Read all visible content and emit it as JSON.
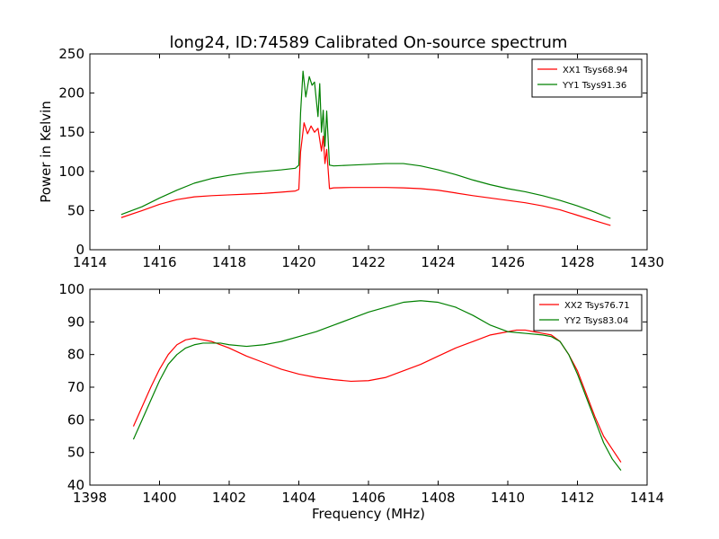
{
  "figure": {
    "title": "long24, ID:74589 Calibrated On-source spectrum",
    "xlabel": "Frequency (MHz)",
    "ylabel": "Power in Kelvin"
  },
  "chart_data": [
    {
      "type": "line",
      "title": "long24, ID:74589 Calibrated On-source spectrum",
      "xlabel": "",
      "ylabel": "Power in Kelvin",
      "xlim": [
        1414,
        1430
      ],
      "ylim": [
        0,
        250
      ],
      "xticks": [
        1414,
        1416,
        1418,
        1420,
        1422,
        1424,
        1426,
        1428,
        1430
      ],
      "yticks": [
        0,
        50,
        100,
        150,
        200,
        250
      ],
      "grid": false,
      "legend": "top-right",
      "series": [
        {
          "name": "XX1 Tsys68.94",
          "color": "#ff0000",
          "x": [
            1414.9,
            1415.5,
            1416,
            1416.5,
            1417,
            1417.5,
            1418,
            1418.5,
            1419,
            1419.5,
            1419.9,
            1420.0,
            1420.05,
            1420.15,
            1420.25,
            1420.35,
            1420.45,
            1420.55,
            1420.65,
            1420.7,
            1420.75,
            1420.8,
            1420.88,
            1421.0,
            1421.5,
            1422,
            1422.5,
            1423,
            1423.5,
            1424,
            1424.5,
            1425,
            1425.5,
            1426,
            1426.5,
            1427,
            1427.5,
            1428,
            1428.5,
            1428.95
          ],
          "y": [
            41,
            50,
            58,
            64,
            67.5,
            69,
            70,
            71,
            72,
            73.5,
            75,
            77,
            125,
            162,
            148,
            158,
            150,
            155,
            126,
            145,
            110,
            128,
            78,
            79,
            79.5,
            79.5,
            79.5,
            79,
            78,
            76,
            72.5,
            69,
            66,
            63,
            60,
            56,
            51,
            44,
            37,
            31
          ]
        },
        {
          "name": "YY1 Tsys91.36",
          "color": "#008000",
          "x": [
            1414.9,
            1415.5,
            1416,
            1416.5,
            1417,
            1417.5,
            1418,
            1418.5,
            1419,
            1419.5,
            1419.9,
            1420.0,
            1420.05,
            1420.12,
            1420.2,
            1420.3,
            1420.38,
            1420.45,
            1420.55,
            1420.6,
            1420.65,
            1420.7,
            1420.75,
            1420.8,
            1420.88,
            1421.0,
            1421.5,
            1422,
            1422.5,
            1423,
            1423.5,
            1424,
            1424.5,
            1425,
            1425.5,
            1426,
            1426.5,
            1427,
            1427.5,
            1428,
            1428.5,
            1428.95
          ],
          "y": [
            45,
            55,
            66,
            76,
            85,
            91,
            95,
            98,
            100,
            102,
            104,
            108,
            175,
            228,
            195,
            221,
            210,
            214,
            170,
            212,
            150,
            178,
            132,
            177,
            108,
            107,
            108,
            109,
            110,
            110,
            107,
            102,
            96,
            89,
            83,
            78,
            74,
            69,
            63,
            56,
            48,
            40
          ]
        }
      ]
    },
    {
      "type": "line",
      "title": "",
      "xlabel": "Frequency (MHz)",
      "ylabel": "",
      "xlim": [
        1398,
        1414
      ],
      "ylim": [
        40,
        100
      ],
      "xticks": [
        1398,
        1400,
        1402,
        1404,
        1406,
        1408,
        1410,
        1412,
        1414
      ],
      "yticks": [
        40,
        50,
        60,
        70,
        80,
        90,
        100
      ],
      "grid": false,
      "legend": "top-right",
      "series": [
        {
          "name": "XX2 Tsys76.71",
          "color": "#ff0000",
          "x": [
            1399.25,
            1399.5,
            1399.75,
            1400,
            1400.25,
            1400.5,
            1400.75,
            1401,
            1401.25,
            1401.5,
            1401.75,
            1402,
            1402.5,
            1403,
            1403.5,
            1404,
            1404.5,
            1405,
            1405.5,
            1406,
            1406.5,
            1407,
            1407.5,
            1408,
            1408.5,
            1409,
            1409.5,
            1410,
            1410.25,
            1410.5,
            1410.75,
            1411,
            1411.25,
            1411.5,
            1411.75,
            1412,
            1412.25,
            1412.5,
            1412.75,
            1413,
            1413.25
          ],
          "y": [
            58,
            64,
            70,
            75.5,
            80,
            83,
            84.5,
            85,
            84.5,
            84,
            83,
            82,
            79.5,
            77.5,
            75.5,
            74,
            73,
            72.3,
            71.8,
            72,
            73,
            75,
            77,
            79.5,
            82,
            84,
            86,
            87,
            87.5,
            87.5,
            87,
            86.5,
            86,
            84,
            80,
            75,
            68,
            61,
            55,
            51,
            47
          ]
        },
        {
          "name": "YY2 Tsys83.04",
          "color": "#008000",
          "x": [
            1399.25,
            1399.5,
            1399.75,
            1400,
            1400.25,
            1400.5,
            1400.75,
            1401,
            1401.25,
            1401.5,
            1401.75,
            1402,
            1402.5,
            1403,
            1403.5,
            1404,
            1404.5,
            1405,
            1405.5,
            1406,
            1406.5,
            1407,
            1407.5,
            1408,
            1408.5,
            1409,
            1409.5,
            1410,
            1410.5,
            1411,
            1411.25,
            1411.5,
            1411.75,
            1412,
            1412.25,
            1412.5,
            1412.75,
            1413,
            1413.25
          ],
          "y": [
            54,
            60,
            66,
            72,
            77,
            80,
            82,
            83,
            83.5,
            83.5,
            83.5,
            83,
            82.5,
            83,
            84,
            85.5,
            87,
            89,
            91,
            93,
            94.5,
            96,
            96.5,
            96,
            94.5,
            92,
            89,
            87,
            86.5,
            86,
            85.5,
            84,
            80,
            74,
            67,
            60,
            53,
            48,
            44.5
          ]
        }
      ]
    }
  ]
}
